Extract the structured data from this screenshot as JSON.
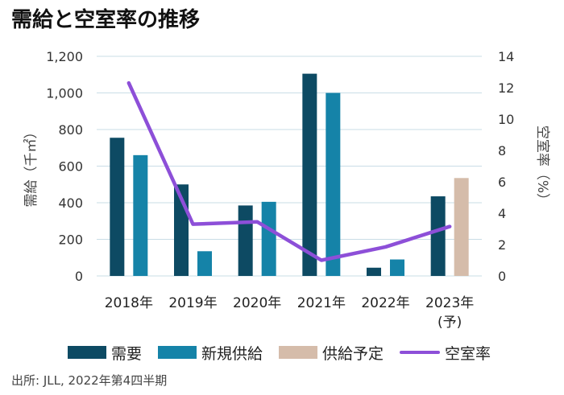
{
  "title": "需給と空室率の推移",
  "source": "出所: JLL, 2022年第4四半期",
  "colors": {
    "demand": "#0d4a63",
    "new_supply": "#1583a8",
    "planned_supply": "#d5bcaa",
    "vacancy": "#8d4fd8",
    "grid": "#c9dde6"
  },
  "chart_data": {
    "type": "bar",
    "categories": [
      "2018年",
      "2019年",
      "2020年",
      "2021年",
      "2022年",
      "2023年\n(予)"
    ],
    "category_lines": [
      [
        "2018年"
      ],
      [
        "2019年"
      ],
      [
        "2020年"
      ],
      [
        "2021年"
      ],
      [
        "2022年"
      ],
      [
        "2023年",
        "(予)"
      ]
    ],
    "series": [
      {
        "name": "需要",
        "axis": "left",
        "kind": "bar",
        "values": [
          755,
          500,
          385,
          1105,
          45,
          435
        ]
      },
      {
        "name": "新規供給",
        "axis": "left",
        "kind": "bar",
        "values": [
          660,
          135,
          405,
          1000,
          90,
          null
        ]
      },
      {
        "name": "供給予定",
        "axis": "left",
        "kind": "bar",
        "values": [
          null,
          null,
          null,
          null,
          null,
          535
        ]
      },
      {
        "name": "空室率",
        "axis": "right",
        "kind": "line",
        "values": [
          12.3,
          3.3,
          3.45,
          1.0,
          1.85,
          3.15
        ]
      }
    ],
    "ylabel": "需給（千㎡）",
    "y2label": "空室率（%）",
    "ylim": [
      0,
      1200
    ],
    "y2lim": [
      0,
      14
    ],
    "yticks": [
      "0",
      "200",
      "400",
      "600",
      "800",
      "1,000",
      "1,200"
    ],
    "y2ticks": [
      "0",
      "2",
      "4",
      "6",
      "8",
      "10",
      "12",
      "14"
    ],
    "grid": true,
    "legend_position": "bottom"
  }
}
